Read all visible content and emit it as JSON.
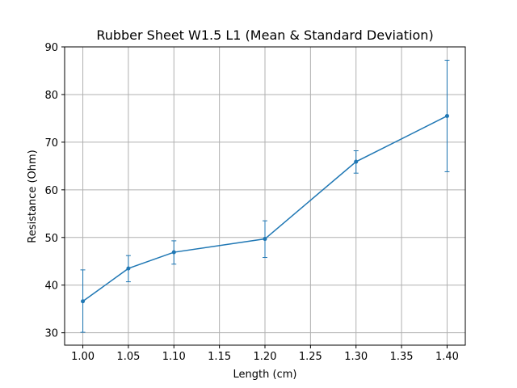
{
  "chart_data": {
    "type": "line",
    "title": "Rubber Sheet W1.5 L1 (Mean & Standard Deviation)",
    "xlabel": "Length (cm)",
    "ylabel": "Resistance (Ohm)",
    "xlim": [
      0.98,
      1.42
    ],
    "ylim": [
      27.4,
      90
    ],
    "xticks": [
      "1.00",
      "1.05",
      "1.10",
      "1.15",
      "1.20",
      "1.25",
      "1.30",
      "1.35",
      "1.40"
    ],
    "yticks": [
      "30",
      "40",
      "50",
      "60",
      "70",
      "80",
      "90"
    ],
    "grid": true,
    "series": [
      {
        "x": [
          1.0,
          1.05,
          1.1,
          1.2,
          1.3,
          1.4
        ],
        "y": [
          36.6,
          43.5,
          46.9,
          49.7,
          65.9,
          75.5
        ],
        "err_low": [
          30.1,
          40.7,
          44.4,
          45.8,
          63.5,
          63.8
        ],
        "err_high": [
          43.2,
          46.2,
          49.3,
          53.5,
          68.2,
          87.2
        ],
        "color": "#1f77b4"
      }
    ]
  }
}
